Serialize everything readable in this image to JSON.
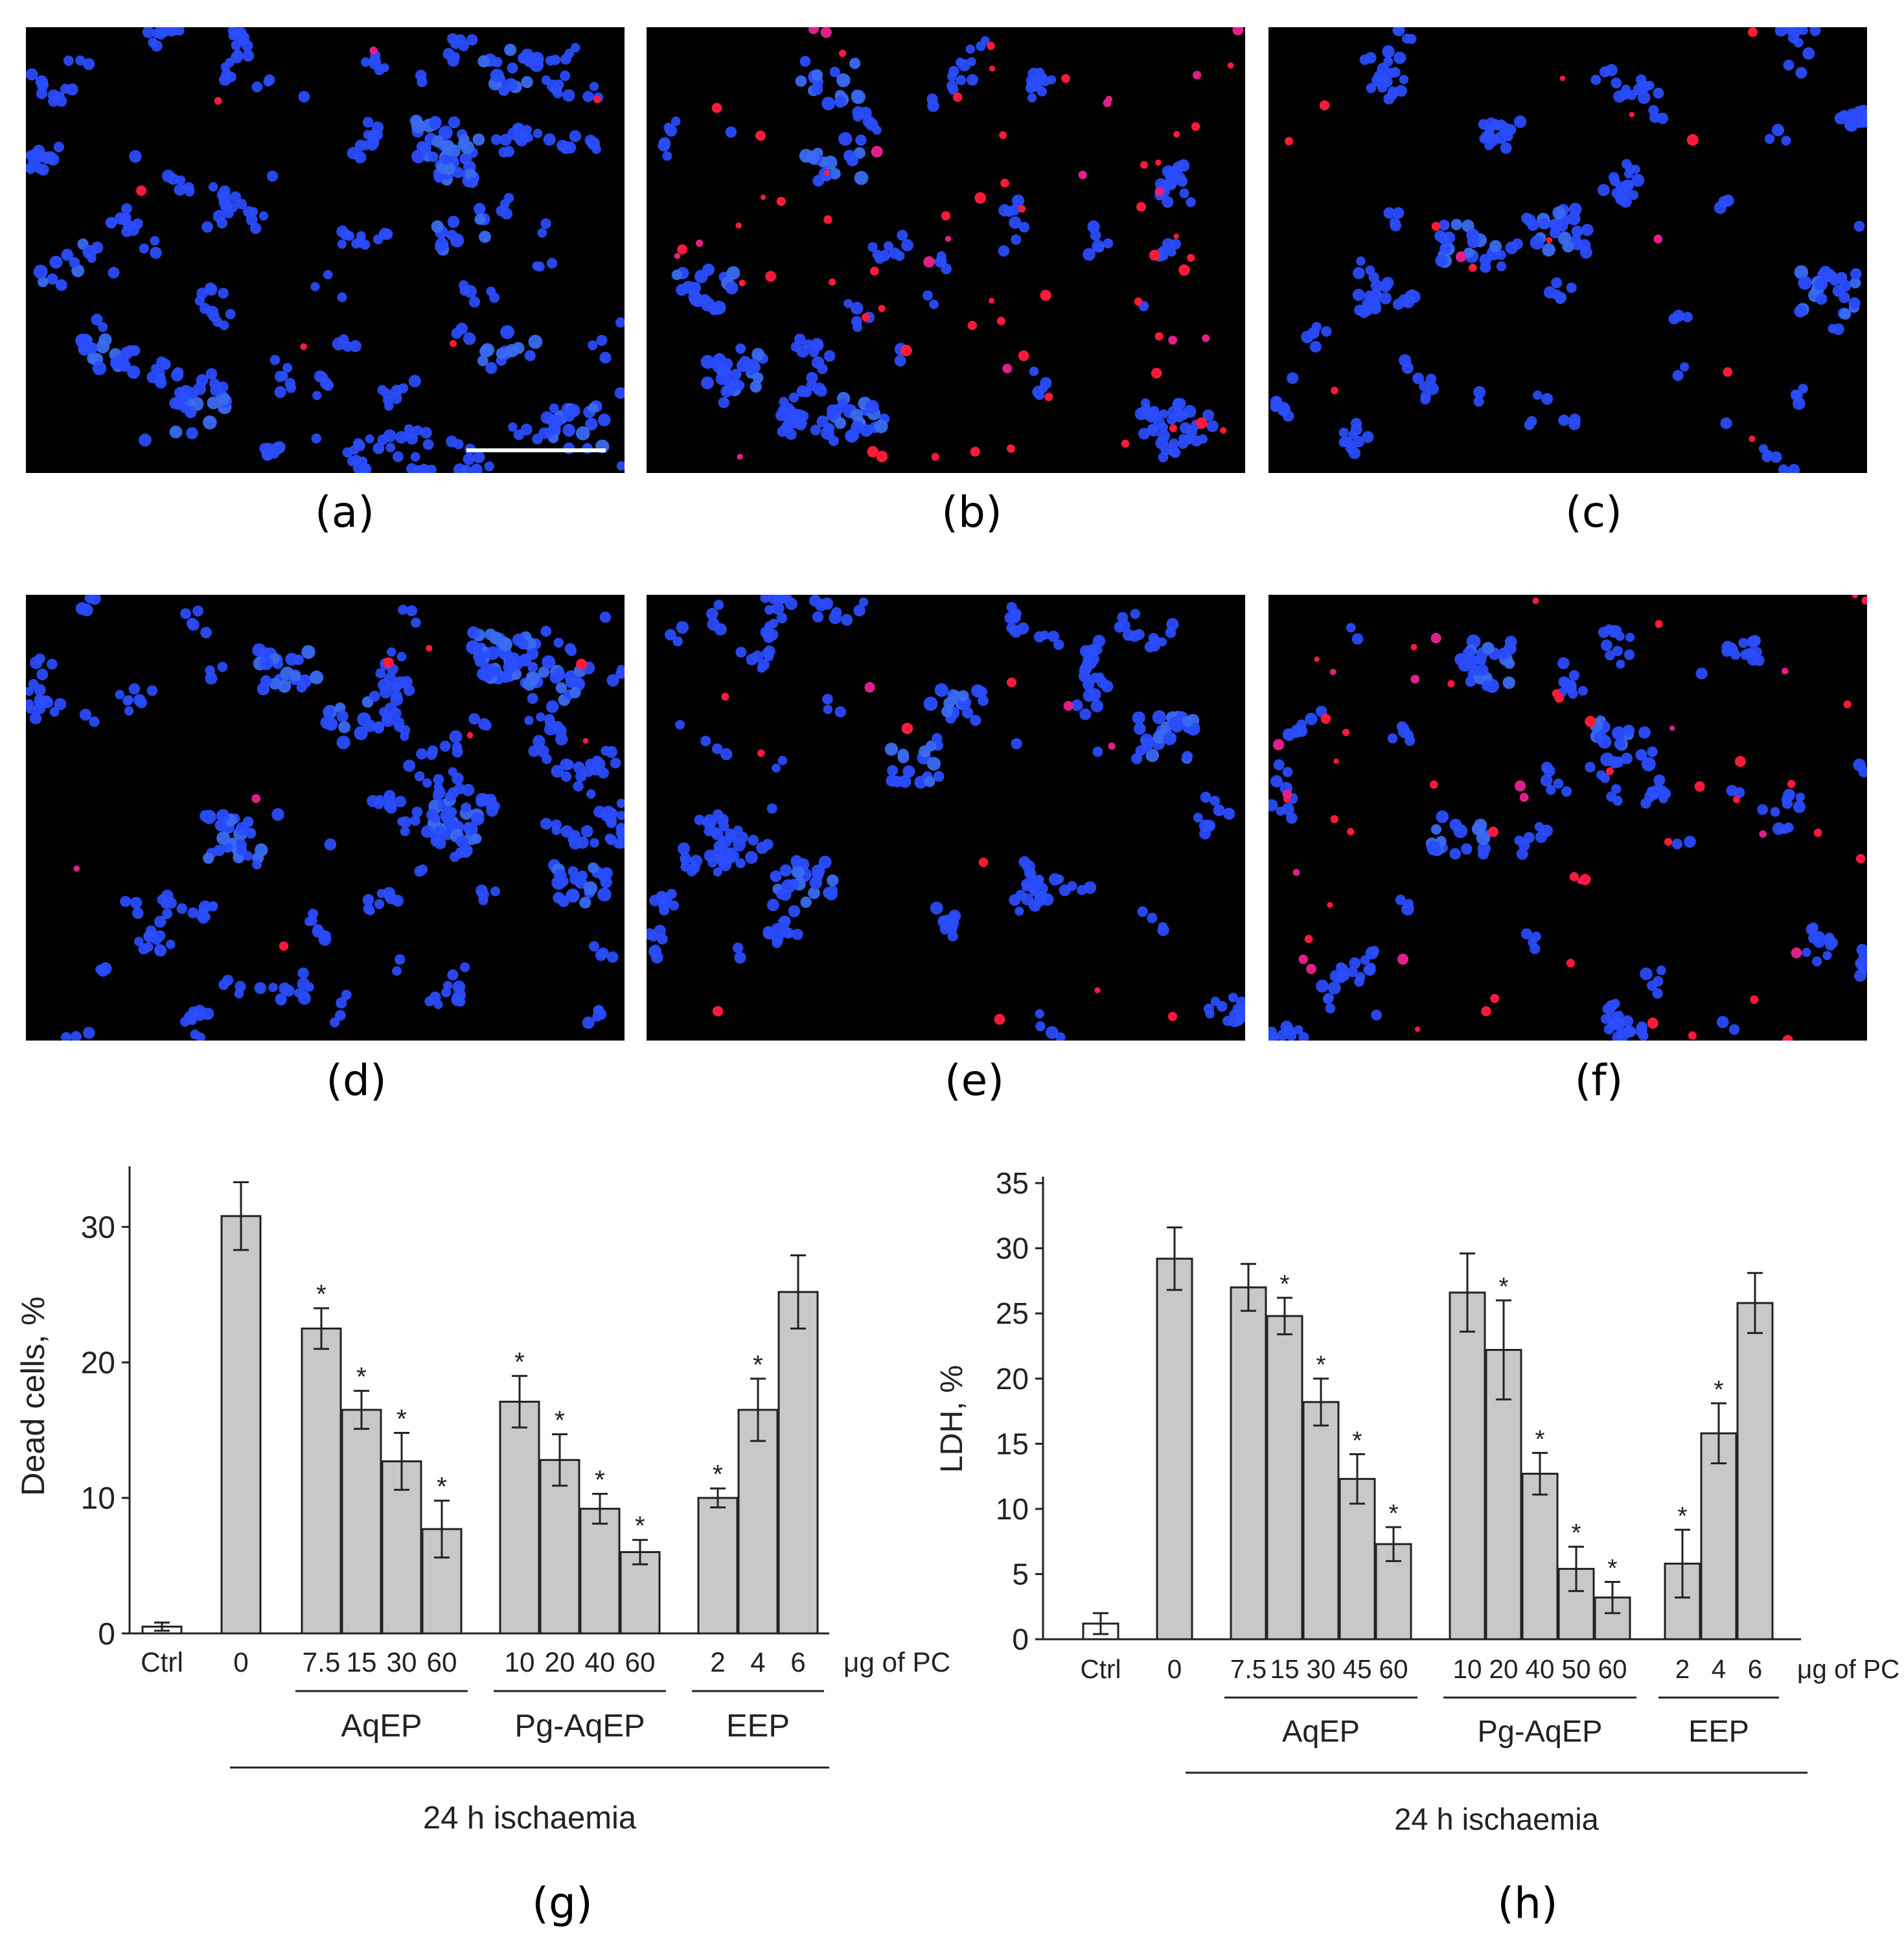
{
  "panel_labels": {
    "a": "(a)",
    "b": "(b)",
    "c": "(c)",
    "d": "(d)",
    "e": "(e)",
    "f": "(f)",
    "g": "(g)",
    "h": "(h)"
  },
  "micrographs": [
    {
      "id": "a",
      "blue": 330,
      "red": 6,
      "clusters": 9,
      "scale_bar": true,
      "stain_colors": {
        "nuclei": "#2a4dff",
        "dead": "#ff1a3a"
      }
    },
    {
      "id": "b",
      "blue": 200,
      "red": 70,
      "clusters": 5,
      "scale_bar": false,
      "stain_colors": {
        "nuclei": "#2a4dff",
        "dead": "#ff1a3a"
      }
    },
    {
      "id": "c",
      "blue": 210,
      "red": 14,
      "clusters": 3,
      "scale_bar": false,
      "stain_colors": {
        "nuclei": "#2a4dff",
        "dead": "#ff1a3a"
      }
    },
    {
      "id": "d",
      "blue": 300,
      "red": 8,
      "clusters": 8,
      "scale_bar": false,
      "stain_colors": {
        "nuclei": "#2a4dff",
        "dead": "#ff1a3a"
      }
    },
    {
      "id": "e",
      "blue": 250,
      "red": 12,
      "clusters": 4,
      "scale_bar": false,
      "stain_colors": {
        "nuclei": "#2a4dff",
        "dead": "#ff1a3a"
      }
    },
    {
      "id": "f",
      "blue": 190,
      "red": 55,
      "clusters": 3,
      "scale_bar": false,
      "stain_colors": {
        "nuclei": "#2a4dff",
        "dead": "#ff1a3a"
      }
    }
  ],
  "chart_data": [
    {
      "id": "g",
      "type": "bar",
      "ylabel": "Dead cells, %",
      "ylim": [
        0,
        34
      ],
      "yticks": [
        0,
        10,
        20,
        30
      ],
      "bar_color": "#c8c8c8",
      "unit_label": "μg of PC",
      "bars": [
        {
          "label": "Ctrl",
          "value": 0.5,
          "err": 0.3,
          "sig": false,
          "color": "#ffffff"
        },
        {
          "label": "0",
          "value": 30.8,
          "err": 2.5,
          "sig": false
        },
        {
          "label": "7.5",
          "value": 22.5,
          "err": 1.5,
          "sig": true
        },
        {
          "label": "15",
          "value": 16.5,
          "err": 1.4,
          "sig": true
        },
        {
          "label": "30",
          "value": 12.7,
          "err": 2.1,
          "sig": true
        },
        {
          "label": "60",
          "value": 7.7,
          "err": 2.1,
          "sig": true
        },
        {
          "label": "10",
          "value": 17.1,
          "err": 1.9,
          "sig": true
        },
        {
          "label": "20",
          "value": 12.8,
          "err": 1.9,
          "sig": true
        },
        {
          "label": "40",
          "value": 9.2,
          "err": 1.1,
          "sig": true
        },
        {
          "label": "60",
          "value": 6.0,
          "err": 0.9,
          "sig": true
        },
        {
          "label": "2",
          "value": 10.0,
          "err": 0.7,
          "sig": true
        },
        {
          "label": "4",
          "value": 16.5,
          "err": 2.3,
          "sig": true
        },
        {
          "label": "6",
          "value": 25.2,
          "err": 2.7,
          "sig": false
        }
      ],
      "groups": [
        {
          "label": "AqEP",
          "from": 2,
          "to": 5
        },
        {
          "label": "Pg-AqEP",
          "from": 6,
          "to": 9
        },
        {
          "label": "EEP",
          "from": 10,
          "to": 12
        }
      ],
      "condition": {
        "label": "24 h ischaemia",
        "from": 1,
        "to": 12
      }
    },
    {
      "id": "h",
      "type": "bar",
      "ylabel": "LDH, %",
      "ylim": [
        0,
        35
      ],
      "yticks": [
        0,
        5,
        10,
        15,
        20,
        25,
        30,
        35
      ],
      "bar_color": "#c8c8c8",
      "unit_label": "μg of PC",
      "bars": [
        {
          "label": "Ctrl",
          "value": 1.2,
          "err": 0.8,
          "sig": false,
          "color": "#ffffff"
        },
        {
          "label": "0",
          "value": 29.2,
          "err": 2.4,
          "sig": false
        },
        {
          "label": "7.5",
          "value": 27.0,
          "err": 1.8,
          "sig": false
        },
        {
          "label": "15",
          "value": 24.8,
          "err": 1.4,
          "sig": true
        },
        {
          "label": "30",
          "value": 18.2,
          "err": 1.8,
          "sig": true
        },
        {
          "label": "45",
          "value": 12.3,
          "err": 1.9,
          "sig": true
        },
        {
          "label": "60",
          "value": 7.3,
          "err": 1.3,
          "sig": true
        },
        {
          "label": "10",
          "value": 26.6,
          "err": 3.0,
          "sig": false
        },
        {
          "label": "20",
          "value": 22.2,
          "err": 3.8,
          "sig": true
        },
        {
          "label": "40",
          "value": 12.7,
          "err": 1.6,
          "sig": true
        },
        {
          "label": "50",
          "value": 5.4,
          "err": 1.7,
          "sig": true
        },
        {
          "label": "60",
          "value": 3.2,
          "err": 1.2,
          "sig": true
        },
        {
          "label": "2",
          "value": 5.8,
          "err": 2.6,
          "sig": true
        },
        {
          "label": "4",
          "value": 15.8,
          "err": 2.3,
          "sig": true
        },
        {
          "label": "6",
          "value": 25.8,
          "err": 2.3,
          "sig": false
        }
      ],
      "groups": [
        {
          "label": "AqEP",
          "from": 2,
          "to": 6
        },
        {
          "label": "Pg-AqEP",
          "from": 7,
          "to": 11
        },
        {
          "label": "EEP",
          "from": 12,
          "to": 14
        }
      ],
      "condition": {
        "label": "24 h ischaemia",
        "from": 1,
        "to": 14
      }
    }
  ]
}
